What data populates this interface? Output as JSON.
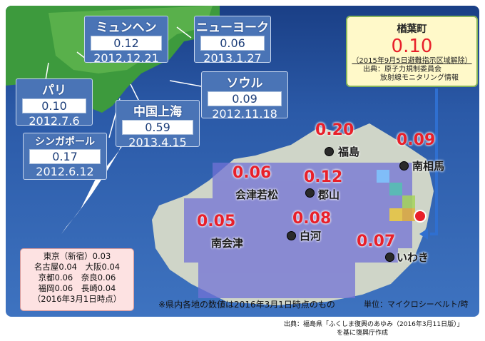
{
  "cities_world": [
    {
      "name": "ミュンヘン",
      "value": "0.12",
      "date": "2012.12.21"
    },
    {
      "name": "ニューヨーク",
      "value": "0.06",
      "date": "2013.1.27"
    },
    {
      "name": "パリ",
      "value": "0.10",
      "date": "2012.7.6"
    },
    {
      "name": "ソウル",
      "value": "0.09",
      "date": "2012.11.18"
    },
    {
      "name": "中国上海",
      "value": "0.59",
      "date": "2013.4.15"
    },
    {
      "name": "シンガポール",
      "value": "0.17",
      "date": "2012.6.12"
    }
  ],
  "naraha": {
    "title": "楢葉町",
    "value": "0.10",
    "note": "（2015年9月5日避難指示区域解除）",
    "source_line1": "出典：原子力規制委員会",
    "source_line2": "放射線モニタリング情報"
  },
  "fukushima_cities": [
    {
      "name": "福島",
      "value": "0.20"
    },
    {
      "name": "南相馬",
      "value": "0.09"
    },
    {
      "name": "会津若松",
      "value": "0.06"
    },
    {
      "name": "郡山",
      "value": "0.12"
    },
    {
      "name": "南会津",
      "value": "0.05"
    },
    {
      "name": "白河",
      "value": "0.08"
    },
    {
      "name": "いわき",
      "value": "0.07"
    }
  ],
  "japan_box": {
    "line1": "東京（新宿）0.03",
    "line2": "名古屋0.04　大阪0.04",
    "line3": "京都0.06　奈良0.06",
    "line4": "福岡0.06　長崎0.04",
    "line5": "（2016年3月1日時点）"
  },
  "footnotes": {
    "note": "※県内各地の数値は2016年3月1日時点のもの",
    "unit": "単位：マイクロシーベルト/時",
    "source1": "出典：福島県「ふくしま復興のあゆみ（2016年3月11日版）」",
    "source2": "を基に復興庁作成"
  },
  "colors": {
    "value_red": "#e8202a",
    "ocean": "#2b5aa8",
    "land": "#c8d0c0",
    "grid_cell": "#6a6ad0"
  }
}
